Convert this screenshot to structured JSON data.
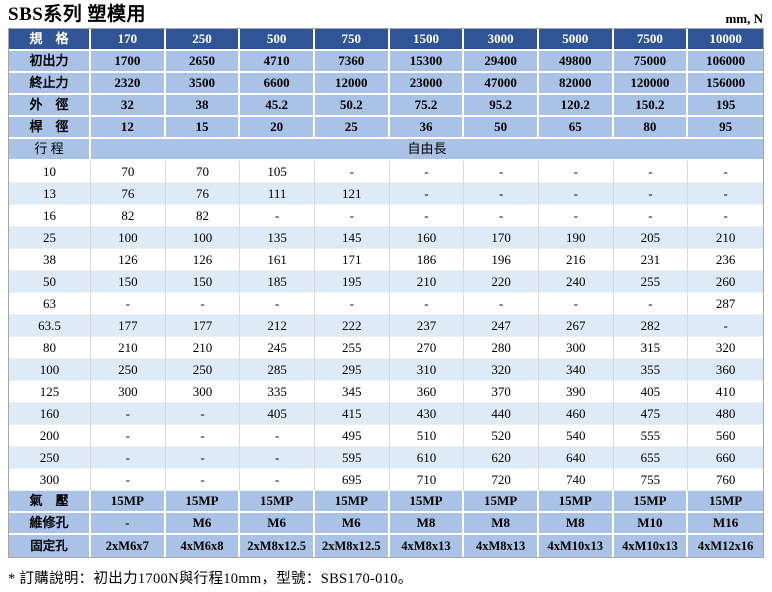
{
  "title": "SBS系列 塑模用",
  "units": "mm, N",
  "table": {
    "spec_header": {
      "label": "規　格",
      "values": [
        "170",
        "250",
        "500",
        "750",
        "1500",
        "3000",
        "5000",
        "7500",
        "10000"
      ]
    },
    "spec_rows": [
      {
        "label": "初出力",
        "values": [
          "1700",
          "2650",
          "4710",
          "7360",
          "15300",
          "29400",
          "49800",
          "75000",
          "106000"
        ]
      },
      {
        "label": "終止力",
        "values": [
          "2320",
          "3500",
          "6600",
          "12000",
          "23000",
          "47000",
          "82000",
          "120000",
          "156000"
        ]
      },
      {
        "label": "外　徑",
        "values": [
          "32",
          "38",
          "45.2",
          "50.2",
          "75.2",
          "95.2",
          "120.2",
          "150.2",
          "195"
        ]
      },
      {
        "label": "桿　徑",
        "values": [
          "12",
          "15",
          "20",
          "25",
          "36",
          "50",
          "65",
          "80",
          "95"
        ]
      }
    ],
    "stroke_header": {
      "label": "行 程",
      "span_label": "自由長"
    },
    "stroke_rows": [
      {
        "label": "10",
        "values": [
          "70",
          "70",
          "105",
          "-",
          "-",
          "-",
          "-",
          "-",
          "-"
        ]
      },
      {
        "label": "13",
        "values": [
          "76",
          "76",
          "111",
          "121",
          "-",
          "-",
          "-",
          "-",
          "-"
        ]
      },
      {
        "label": "16",
        "values": [
          "82",
          "82",
          "-",
          "-",
          "-",
          "-",
          "-",
          "-",
          "-"
        ]
      },
      {
        "label": "25",
        "values": [
          "100",
          "100",
          "135",
          "145",
          "160",
          "170",
          "190",
          "205",
          "210"
        ]
      },
      {
        "label": "38",
        "values": [
          "126",
          "126",
          "161",
          "171",
          "186",
          "196",
          "216",
          "231",
          "236"
        ]
      },
      {
        "label": "50",
        "values": [
          "150",
          "150",
          "185",
          "195",
          "210",
          "220",
          "240",
          "255",
          "260"
        ]
      },
      {
        "label": "63",
        "values": [
          "-",
          "-",
          "-",
          "-",
          "-",
          "-",
          "-",
          "-",
          "287"
        ]
      },
      {
        "label": "63.5",
        "values": [
          "177",
          "177",
          "212",
          "222",
          "237",
          "247",
          "267",
          "282",
          "-"
        ]
      },
      {
        "label": "80",
        "values": [
          "210",
          "210",
          "245",
          "255",
          "270",
          "280",
          "300",
          "315",
          "320"
        ]
      },
      {
        "label": "100",
        "values": [
          "250",
          "250",
          "285",
          "295",
          "310",
          "320",
          "340",
          "355",
          "360"
        ]
      },
      {
        "label": "125",
        "values": [
          "300",
          "300",
          "335",
          "345",
          "360",
          "370",
          "390",
          "405",
          "410"
        ]
      },
      {
        "label": "160",
        "values": [
          "-",
          "-",
          "405",
          "415",
          "430",
          "440",
          "460",
          "475",
          "480"
        ]
      },
      {
        "label": "200",
        "values": [
          "-",
          "-",
          "-",
          "495",
          "510",
          "520",
          "540",
          "555",
          "560"
        ]
      },
      {
        "label": "250",
        "values": [
          "-",
          "-",
          "-",
          "595",
          "610",
          "620",
          "640",
          "655",
          "660"
        ]
      },
      {
        "label": "300",
        "values": [
          "-",
          "-",
          "-",
          "695",
          "710",
          "720",
          "740",
          "755",
          "760"
        ]
      }
    ],
    "footer_rows": [
      {
        "label": "氣　壓",
        "values": [
          "15MP",
          "15MP",
          "15MP",
          "15MP",
          "15MP",
          "15MP",
          "15MP",
          "15MP",
          "15MP"
        ]
      },
      {
        "label": "維修孔",
        "values": [
          "-",
          "M6",
          "M6",
          "M6",
          "M8",
          "M8",
          "M8",
          "M10",
          "M16"
        ]
      },
      {
        "label": "固定孔",
        "values": [
          "2xM6x7",
          "4xM6x8",
          "2xM8x12.5",
          "2xM8x12.5",
          "4xM8x13",
          "4xM8x13",
          "4xM10x13",
          "4xM10x13",
          "4xM12x16"
        ]
      }
    ]
  },
  "note": "* 訂購說明：初出力1700N與行程10mm，型號：SBS170-010。",
  "colors": {
    "header_bg": "#2F5597",
    "header_text": "#FFFFFF",
    "band_bg": "#A9C2E6",
    "alt_row_bg": "#DEEBF6",
    "row_bg": "#FFFFFF",
    "grid": "#D9D9D9",
    "text": "#000000"
  }
}
